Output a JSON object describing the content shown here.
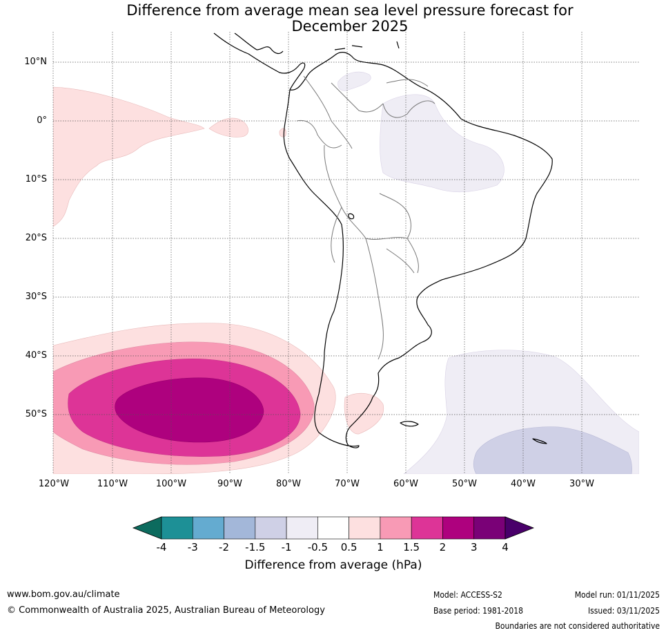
{
  "title": {
    "line1": "Difference from average mean sea level pressure forecast for",
    "line2": "December 2025"
  },
  "map": {
    "lat_labels": [
      "10°N",
      "0°",
      "10°S",
      "20°S",
      "30°S",
      "40°S",
      "50°S"
    ],
    "lon_labels": [
      "120°W",
      "110°W",
      "100°W",
      "90°W",
      "80°W",
      "70°W",
      "60°W",
      "50°W",
      "40°W",
      "30°W"
    ]
  },
  "colorbar": {
    "ticks": [
      "-4",
      "-3",
      "-2",
      "-1.5",
      "-1",
      "-0.5",
      "0.5",
      "1",
      "1.5",
      "2",
      "3",
      "4"
    ],
    "colors": [
      "#1d9096",
      "#64abd0",
      "#a3b7d9",
      "#cfd0e6",
      "#efedf5",
      "#ffffff",
      "#fde0e0",
      "#f89ab5",
      "#dd3497",
      "#ae017e",
      "#7a0177"
    ],
    "low_extend_color": "#0c6b5e",
    "high_extend_color": "#49006a",
    "label": "Difference from average (hPa)"
  },
  "footer": {
    "website": "www.bom.gov.au/climate",
    "copyright": "© Commonwealth of Australia 2025, Australian Bureau of Meteorology",
    "model": "Model: ACCESS-S2",
    "base_period": "Base period: 1981-2018",
    "model_run": "Model run: 01/11/2025",
    "issued": "Issued: 03/11/2025",
    "boundaries_note": "Boundaries are not considered authoritative"
  }
}
